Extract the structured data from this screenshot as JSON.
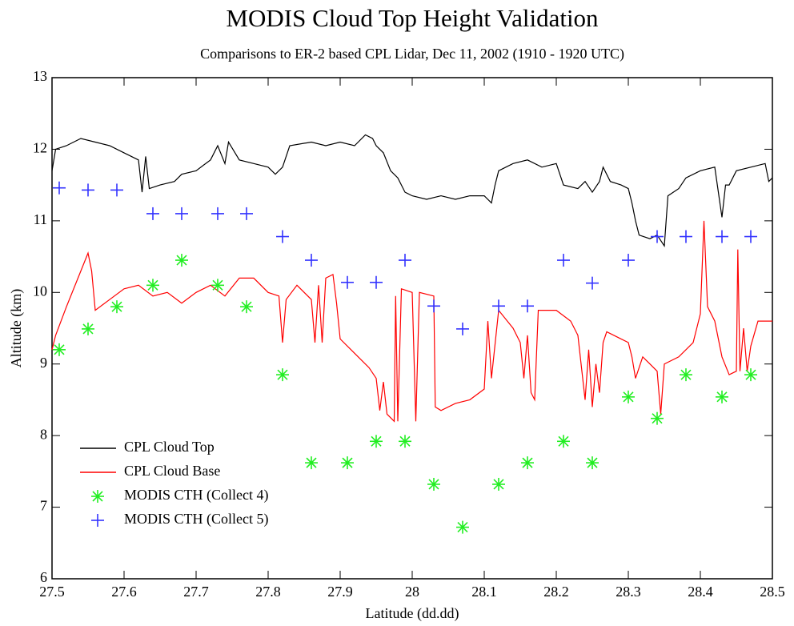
{
  "chart_data": {
    "type": "line",
    "title": "MODIS Cloud Top Height Validation",
    "subtitle": "Comparisons to ER-2 based CPL Lidar, Dec 11, 2002 (1910 - 1920 UTC)",
    "x_label": "Latitude (dd.dd)",
    "y_label": "Altitude (km)",
    "xlim": [
      27.5,
      28.5
    ],
    "xticks": [
      27.5,
      27.6,
      27.7,
      27.8,
      27.9,
      28,
      28.1,
      28.2,
      28.3,
      28.4,
      28.5
    ],
    "ylim": [
      6,
      13
    ],
    "yticks": [
      6,
      7,
      8,
      9,
      10,
      11,
      12,
      13
    ],
    "legend": "lower left",
    "series": [
      {
        "name": "CPL Cloud Top",
        "color": "#000000",
        "mode": "line",
        "x": [
          27.5,
          27.505,
          27.52,
          27.54,
          27.56,
          27.58,
          27.6,
          27.62,
          27.625,
          27.63,
          27.635,
          27.65,
          27.67,
          27.68,
          27.7,
          27.72,
          27.73,
          27.74,
          27.745,
          27.76,
          27.78,
          27.8,
          27.81,
          27.82,
          27.83,
          27.86,
          27.88,
          27.9,
          27.92,
          27.935,
          27.945,
          27.95,
          27.96,
          27.97,
          27.98,
          27.99,
          28.0,
          28.02,
          28.04,
          28.06,
          28.08,
          28.1,
          28.11,
          28.115,
          28.12,
          28.14,
          28.16,
          28.18,
          28.2,
          28.21,
          28.23,
          28.24,
          28.25,
          28.26,
          28.265,
          28.275,
          28.29,
          28.3,
          28.305,
          28.31,
          28.315,
          28.33,
          28.34,
          28.35,
          28.355,
          28.37,
          28.38,
          28.4,
          28.42,
          28.43,
          28.435,
          28.44,
          28.45,
          28.47,
          28.49,
          28.495,
          28.5
        ],
        "values": [
          11.7,
          12.0,
          12.05,
          12.15,
          12.1,
          12.05,
          11.95,
          11.85,
          11.4,
          11.9,
          11.45,
          11.5,
          11.55,
          11.65,
          11.7,
          11.85,
          12.05,
          11.8,
          12.1,
          11.85,
          11.8,
          11.75,
          11.65,
          11.75,
          12.05,
          12.1,
          12.05,
          12.1,
          12.05,
          12.2,
          12.15,
          12.05,
          11.95,
          11.7,
          11.6,
          11.4,
          11.35,
          11.3,
          11.35,
          11.3,
          11.35,
          11.35,
          11.25,
          11.5,
          11.7,
          11.8,
          11.85,
          11.75,
          11.8,
          11.5,
          11.45,
          11.55,
          11.4,
          11.55,
          11.75,
          11.55,
          11.5,
          11.45,
          11.25,
          11.0,
          10.8,
          10.75,
          10.8,
          10.65,
          11.35,
          11.45,
          11.6,
          11.7,
          11.75,
          11.05,
          11.5,
          11.5,
          11.7,
          11.75,
          11.8,
          11.55,
          11.6
        ]
      },
      {
        "name": "CPL Cloud Base",
        "color": "#ff0000",
        "mode": "line",
        "x": [
          27.5,
          27.505,
          27.52,
          27.54,
          27.55,
          27.555,
          27.56,
          27.58,
          27.6,
          27.62,
          27.64,
          27.66,
          27.68,
          27.7,
          27.72,
          27.74,
          27.76,
          27.78,
          27.8,
          27.815,
          27.82,
          27.825,
          27.84,
          27.86,
          27.865,
          27.87,
          27.875,
          27.88,
          27.89,
          27.895,
          27.9,
          27.92,
          27.94,
          27.95,
          27.955,
          27.96,
          27.965,
          27.975,
          27.977,
          27.98,
          27.985,
          28.0,
          28.005,
          28.01,
          28.03,
          28.032,
          28.04,
          28.06,
          28.08,
          28.1,
          28.105,
          28.11,
          28.12,
          28.14,
          28.15,
          28.155,
          28.16,
          28.165,
          28.17,
          28.175,
          28.2,
          28.22,
          28.23,
          28.24,
          28.245,
          28.25,
          28.255,
          28.26,
          28.265,
          28.27,
          28.29,
          28.3,
          28.305,
          28.31,
          28.32,
          28.33,
          28.34,
          28.345,
          28.35,
          28.37,
          28.39,
          28.4,
          28.405,
          28.41,
          28.42,
          28.43,
          28.44,
          28.45,
          28.452,
          28.455,
          28.46,
          28.465,
          28.47,
          28.48,
          28.5
        ],
        "values": [
          9.2,
          9.4,
          9.8,
          10.3,
          10.55,
          10.3,
          9.75,
          9.9,
          10.05,
          10.1,
          9.95,
          10.0,
          9.85,
          10.0,
          10.1,
          9.95,
          10.2,
          10.2,
          10.0,
          9.95,
          9.3,
          9.9,
          10.1,
          9.9,
          9.3,
          10.1,
          9.3,
          10.2,
          10.25,
          9.85,
          9.35,
          9.15,
          8.95,
          8.8,
          8.35,
          8.75,
          8.3,
          8.2,
          9.95,
          8.2,
          10.05,
          10.0,
          8.2,
          10.0,
          9.95,
          8.4,
          8.35,
          8.45,
          8.5,
          8.65,
          9.6,
          8.8,
          9.75,
          9.5,
          9.3,
          8.8,
          9.4,
          8.6,
          8.5,
          9.75,
          9.75,
          9.6,
          9.4,
          8.5,
          9.2,
          8.4,
          9.0,
          8.6,
          9.3,
          9.45,
          9.35,
          9.3,
          9.1,
          8.8,
          9.1,
          9.0,
          8.9,
          8.3,
          9.0,
          9.1,
          9.3,
          9.7,
          11.0,
          9.8,
          9.6,
          9.1,
          8.85,
          8.9,
          10.6,
          8.9,
          9.5,
          8.9,
          9.25,
          9.6,
          9.6
        ]
      },
      {
        "name": "MODIS CTH (Collect 4)",
        "color": "#22ee22",
        "mode": "marker",
        "marker": "asterisk",
        "x": [
          27.51,
          27.55,
          27.59,
          27.64,
          27.68,
          27.73,
          27.77,
          27.82,
          27.86,
          27.91,
          27.95,
          27.99,
          28.03,
          28.07,
          28.12,
          28.16,
          28.21,
          28.25,
          28.3,
          28.34,
          28.38,
          28.43,
          28.47
        ],
        "values": [
          9.2,
          9.49,
          9.8,
          10.1,
          10.45,
          10.1,
          9.8,
          8.85,
          7.62,
          7.62,
          7.92,
          7.92,
          7.32,
          6.72,
          7.32,
          7.62,
          7.92,
          7.62,
          8.54,
          8.24,
          8.85,
          8.54,
          8.85
        ]
      },
      {
        "name": "MODIS CTH (Collect 5)",
        "color": "#3333ff",
        "mode": "marker",
        "marker": "plus",
        "x": [
          27.51,
          27.55,
          27.59,
          27.64,
          27.68,
          27.73,
          27.77,
          27.82,
          27.86,
          27.91,
          27.95,
          27.99,
          28.03,
          28.07,
          28.12,
          28.16,
          28.21,
          28.25,
          28.3,
          28.34,
          28.38,
          28.43,
          28.47
        ],
        "values": [
          11.46,
          11.43,
          11.43,
          11.1,
          11.1,
          11.1,
          11.1,
          10.78,
          10.45,
          10.14,
          10.14,
          10.45,
          9.81,
          9.49,
          9.81,
          9.81,
          10.45,
          10.13,
          10.45,
          10.78,
          10.78,
          10.78,
          10.78
        ]
      }
    ]
  }
}
